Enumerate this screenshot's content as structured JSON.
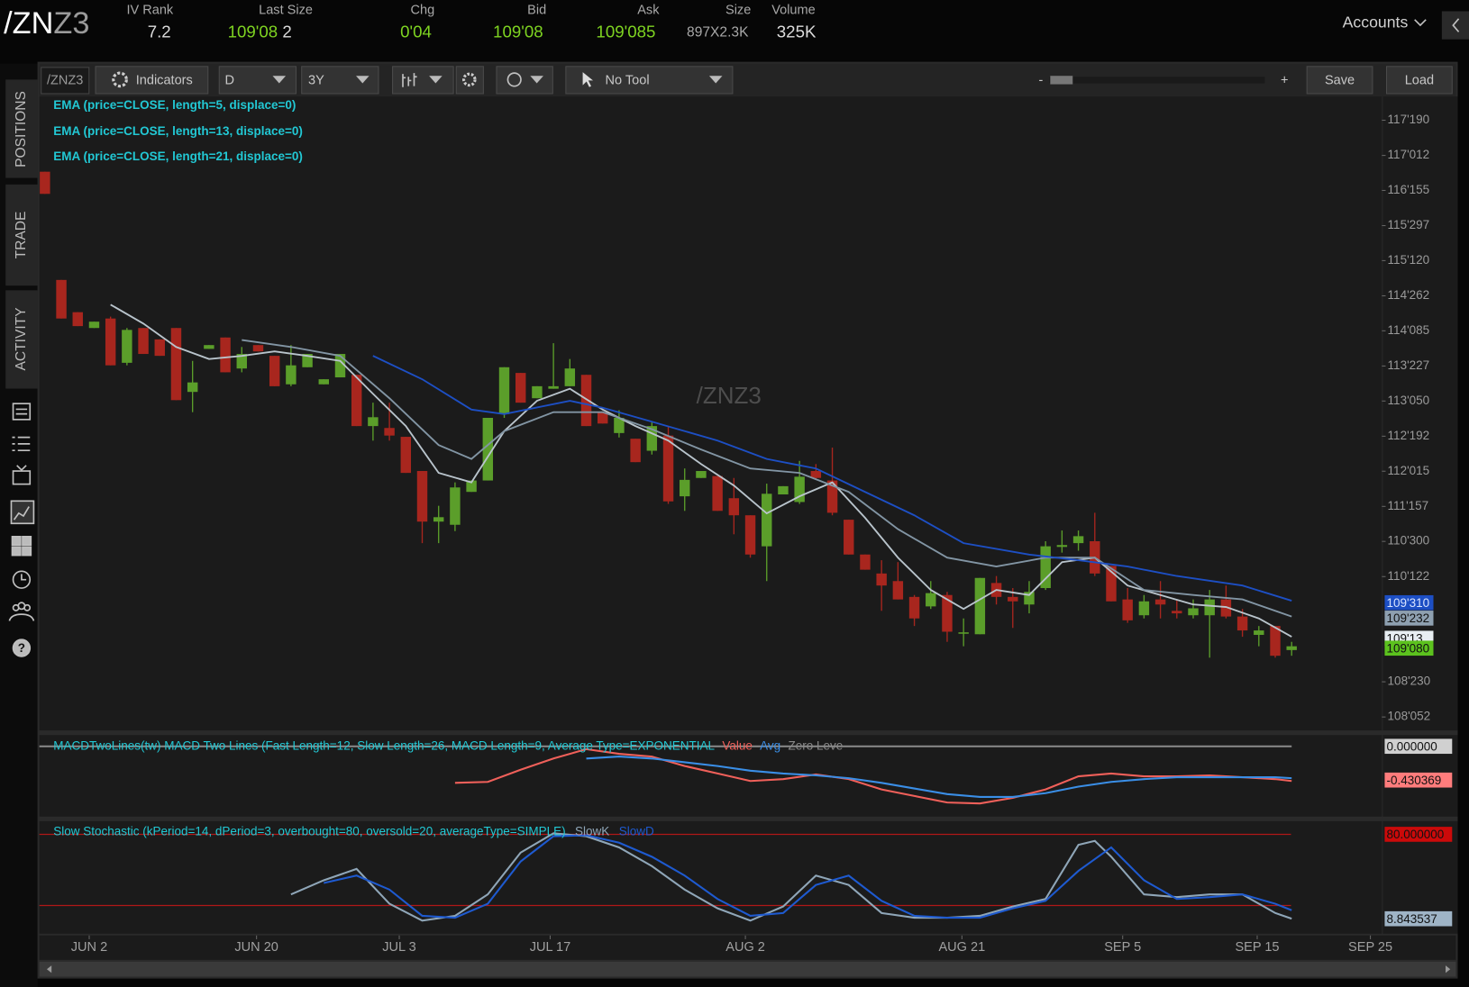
{
  "header": {
    "symbol_main": "/ZN",
    "symbol_suffix": "Z3",
    "fields": [
      {
        "label": "IV Rank",
        "value": "7.2"
      },
      {
        "label": "Last Size",
        "value": "109'08",
        "extra": "2"
      },
      {
        "label": "Chg",
        "value": "0'04"
      },
      {
        "label": "Bid",
        "value": "109'08"
      },
      {
        "label": "Ask",
        "value": "109'085"
      },
      {
        "label": "Size",
        "value": "897X2.3K"
      },
      {
        "label": "Volume",
        "value": "325K"
      }
    ],
    "accounts": "Accounts"
  },
  "side_tabs": [
    "POSITIONS",
    "TRADE",
    "ACTIVITY"
  ],
  "toolbar": {
    "symbol": "/ZNZ3",
    "indicators": "Indicators",
    "aggregation": "D",
    "period": "3Y",
    "tool": "No Tool",
    "zoom_minus": "-",
    "zoom_plus": "+",
    "save": "Save",
    "load": "Load"
  },
  "chart_data": [
    {
      "type": "candlestick",
      "watermark": "/ZNZ3",
      "up_color": "#5b9e2a",
      "down_color": "#a8261e",
      "ohlc": [
        [
          116.78,
          116.78,
          116.43,
          116.43
        ],
        [
          115.07,
          115.07,
          114.46,
          114.46
        ],
        [
          114.56,
          114.56,
          114.34,
          114.34
        ],
        [
          114.31,
          114.41,
          114.31,
          114.41
        ],
        [
          114.46,
          114.49,
          113.72,
          113.72
        ],
        [
          113.76,
          114.31,
          113.72,
          114.28
        ],
        [
          114.31,
          114.31,
          113.9,
          113.9
        ],
        [
          114.13,
          114.13,
          113.87,
          113.87
        ],
        [
          114.31,
          114.31,
          113.17,
          113.17
        ],
        [
          113.3,
          113.79,
          112.98,
          113.45
        ],
        [
          113.98,
          114.04,
          113.98,
          114.04
        ],
        [
          114.16,
          114.16,
          113.61,
          113.61
        ],
        [
          113.67,
          114.01,
          113.61,
          113.9
        ],
        [
          114.04,
          114.04,
          113.94,
          113.94
        ],
        [
          113.87,
          113.87,
          113.39,
          113.39
        ],
        [
          113.42,
          114.04,
          113.39,
          113.72
        ],
        [
          113.69,
          113.9,
          113.69,
          113.9
        ],
        [
          113.42,
          113.5,
          113.42,
          113.5
        ],
        [
          113.53,
          113.9,
          113.53,
          113.9
        ],
        [
          113.57,
          113.57,
          112.76,
          112.76
        ],
        [
          112.76,
          113.13,
          112.53,
          112.9
        ],
        [
          112.73,
          113.13,
          112.53,
          112.61
        ],
        [
          112.59,
          112.59,
          112.02,
          112.02
        ],
        [
          112.05,
          112.05,
          110.91,
          111.25
        ],
        [
          111.25,
          111.5,
          110.91,
          111.32
        ],
        [
          111.2,
          111.87,
          111.1,
          111.79
        ],
        [
          111.72,
          111.9,
          111.72,
          111.9
        ],
        [
          111.9,
          112.89,
          111.9,
          112.89
        ],
        [
          112.95,
          113.69,
          112.89,
          113.69
        ],
        [
          113.6,
          113.6,
          113.13,
          113.13
        ],
        [
          113.2,
          113.39,
          113.2,
          113.39
        ],
        [
          113.35,
          114.07,
          113.35,
          113.39
        ],
        [
          113.39,
          113.82,
          113.39,
          113.67
        ],
        [
          113.57,
          113.57,
          112.76,
          112.76
        ],
        [
          112.98,
          112.98,
          112.8,
          112.8
        ],
        [
          112.65,
          113.01,
          112.58,
          112.89
        ],
        [
          112.56,
          112.56,
          112.19,
          112.19
        ],
        [
          112.37,
          112.83,
          112.31,
          112.76
        ],
        [
          112.61,
          112.76,
          111.53,
          111.57
        ],
        [
          111.65,
          112.09,
          111.42,
          111.91
        ],
        [
          111.94,
          112.05,
          111.94,
          112.05
        ],
        [
          111.97,
          111.97,
          111.42,
          111.42
        ],
        [
          111.62,
          111.94,
          111.05,
          111.35
        ],
        [
          111.35,
          111.35,
          110.68,
          110.73
        ],
        [
          110.86,
          111.85,
          110.31,
          111.69
        ],
        [
          111.68,
          111.81,
          111.68,
          111.81
        ],
        [
          111.56,
          112.21,
          111.53,
          111.96
        ],
        [
          112.05,
          112.16,
          111.91,
          111.94
        ],
        [
          111.9,
          112.42,
          111.35,
          111.39
        ],
        [
          111.28,
          111.28,
          110.73,
          110.73
        ],
        [
          110.73,
          110.73,
          110.49,
          110.49
        ],
        [
          110.43,
          110.64,
          109.84,
          110.24
        ],
        [
          110.31,
          110.61,
          110.02,
          110.02
        ],
        [
          110.06,
          110.09,
          109.6,
          109.72
        ],
        [
          109.91,
          110.31,
          109.87,
          110.12
        ],
        [
          110.09,
          110.14,
          109.35,
          109.51
        ],
        [
          109.5,
          109.72,
          109.28,
          109.5
        ],
        [
          109.47,
          110.36,
          109.47,
          110.36
        ],
        [
          110.28,
          110.39,
          109.94,
          110.06
        ],
        [
          110.06,
          110.2,
          109.57,
          109.99
        ],
        [
          109.94,
          110.31,
          109.8,
          110.14
        ],
        [
          110.2,
          110.94,
          110.17,
          110.86
        ],
        [
          110.85,
          111.11,
          110.76,
          110.88
        ],
        [
          110.91,
          111.11,
          110.79,
          111.02
        ],
        [
          110.94,
          111.39,
          110.39,
          110.43
        ],
        [
          110.55,
          110.55,
          109.99,
          109.99
        ],
        [
          110.02,
          110.2,
          109.65,
          109.69
        ],
        [
          109.77,
          110.09,
          109.72,
          109.99
        ],
        [
          110.02,
          110.31,
          109.72,
          109.94
        ],
        [
          109.84,
          110.02,
          109.72,
          109.8
        ],
        [
          109.77,
          110.02,
          109.72,
          109.88
        ],
        [
          109.77,
          110.17,
          109.1,
          110.02
        ],
        [
          110.02,
          110.24,
          109.72,
          109.75
        ],
        [
          109.75,
          109.87,
          109.43,
          109.53
        ],
        [
          109.46,
          109.6,
          109.28,
          109.53
        ],
        [
          109.6,
          109.6,
          109.1,
          109.13
        ],
        [
          109.22,
          109.35,
          109.13,
          109.28
        ]
      ],
      "series": [
        {
          "name": "EMA (price=CLOSE, length=5, displace=0)",
          "color": "#b9c4cc",
          "x": [
            4,
            6,
            8,
            10,
            12,
            14,
            16,
            18,
            20,
            22,
            24,
            26,
            28,
            30,
            32,
            34,
            36,
            38,
            40,
            42,
            44,
            46,
            48,
            50,
            52,
            54,
            56,
            58,
            60,
            62,
            64,
            66,
            68,
            70,
            72,
            74,
            76
          ],
          "values": [
            114.68,
            114.38,
            114.01,
            113.82,
            113.87,
            113.94,
            113.87,
            113.79,
            113.27,
            112.76,
            112.02,
            111.87,
            112.68,
            113.16,
            113.35,
            113.02,
            112.76,
            112.53,
            112.16,
            111.82,
            111.38,
            111.65,
            111.87,
            111.31,
            110.68,
            110.17,
            109.87,
            110.17,
            110.09,
            110.61,
            110.68,
            110.24,
            110.09,
            109.94,
            109.9,
            109.72,
            109.43
          ]
        },
        {
          "name": "EMA (price=CLOSE, length=13, displace=0)",
          "color": "#8295a4",
          "x": [
            12,
            15,
            18,
            21,
            24,
            26,
            28,
            31,
            34,
            37,
            40,
            43,
            46,
            49,
            52,
            55,
            58,
            61,
            64,
            67,
            70,
            73,
            76
          ],
          "values": [
            114.12,
            114.01,
            113.87,
            113.2,
            112.46,
            112.24,
            112.68,
            112.98,
            112.98,
            112.71,
            112.39,
            112.09,
            112.02,
            111.72,
            111.13,
            110.68,
            110.54,
            110.68,
            110.68,
            110.17,
            110.09,
            110.02,
            109.75
          ]
        },
        {
          "name": "EMA (price=CLOSE, length=21, displace=0)",
          "color": "#1d4fc4",
          "x": [
            20,
            23,
            26,
            28,
            32,
            34,
            37,
            41,
            44,
            47,
            50,
            53,
            56,
            60,
            63,
            66,
            69,
            73,
            76
          ],
          "values": [
            113.87,
            113.5,
            113.02,
            112.95,
            113.16,
            113.05,
            112.83,
            112.53,
            112.24,
            112.09,
            111.72,
            111.35,
            110.91,
            110.73,
            110.64,
            110.54,
            110.39,
            110.24,
            110.0
          ]
        }
      ],
      "xlim": [
        -0.34,
        81.5
      ],
      "xticks": [
        {
          "value": 2.7,
          "label": "JUN 2"
        },
        {
          "value": 12.9,
          "label": "JUN 20"
        },
        {
          "value": 21.6,
          "label": "JUL 3"
        },
        {
          "value": 30.8,
          "label": "JUL 17"
        },
        {
          "value": 42.7,
          "label": "AUG 2"
        },
        {
          "value": 55.9,
          "label": "AUG 21"
        },
        {
          "value": 65.7,
          "label": "SEP 5"
        },
        {
          "value": 73.9,
          "label": "SEP 15"
        },
        {
          "value": 80.8,
          "label": "SEP 25"
        }
      ],
      "ylim": [
        107.95,
        117.94
      ],
      "yticks": [
        {
          "value": 117.59375,
          "label": "117'190"
        },
        {
          "value": 117.0375,
          "label": "117'012"
        },
        {
          "value": 116.484375,
          "label": "116'155"
        },
        {
          "value": 115.928125,
          "label": "115'297"
        },
        {
          "value": 115.375,
          "label": "115'120"
        },
        {
          "value": 114.81875,
          "label": "114'262"
        },
        {
          "value": 114.265625,
          "label": "114'085"
        },
        {
          "value": 113.709375,
          "label": "113'227"
        },
        {
          "value": 113.15625,
          "label": "113'050"
        },
        {
          "value": 112.6,
          "label": "112'192"
        },
        {
          "value": 112.046875,
          "label": "112'015"
        },
        {
          "value": 111.490625,
          "label": "111'157"
        },
        {
          "value": 110.9375,
          "label": "110'300"
        },
        {
          "value": 110.38125,
          "label": "110'122"
        },
        {
          "value": 108.71875,
          "label": "108'230"
        },
        {
          "value": 108.1625,
          "label": "108'052"
        }
      ],
      "price_labels": [
        {
          "value": 109.96875,
          "label": "109'310",
          "color": "#1d4fc4"
        },
        {
          "value": 109.725,
          "label": "109'232",
          "color": "#8ea0b0"
        },
        {
          "value": 109.40625,
          "label": "109'13",
          "color": "#e8eef2"
        },
        {
          "value": 109.25,
          "label": "109'080",
          "color": "#5cc21e"
        }
      ]
    },
    {
      "type": "line",
      "title": "MACDTwoLines(tw) MACD Two Lines (Fast Length=12, Slow Length=26, MACD Length=9, Average Type=EXPONENTIAL",
      "ylim": [
        -0.896,
        0.143
      ],
      "series": [
        {
          "name": "Value",
          "color": "#f0605a",
          "x": [
            25,
            27,
            29,
            31,
            33,
            35,
            37,
            39,
            41,
            43,
            45,
            47,
            49,
            51,
            53,
            55,
            57,
            59,
            61,
            63,
            65,
            67,
            69,
            71,
            73,
            75,
            76
          ],
          "values": [
            -0.466,
            -0.454,
            -0.299,
            -0.155,
            -0.036,
            -0.096,
            -0.131,
            -0.251,
            -0.347,
            -0.442,
            -0.418,
            -0.359,
            -0.418,
            -0.55,
            -0.633,
            -0.717,
            -0.729,
            -0.657,
            -0.55,
            -0.382,
            -0.347,
            -0.382,
            -0.382,
            -0.37,
            -0.394,
            -0.418,
            -0.442
          ]
        },
        {
          "name": "Avg",
          "color": "#3a8ee6",
          "x": [
            33,
            35,
            37,
            39,
            41,
            43,
            45,
            47,
            49,
            51,
            53,
            55,
            57,
            59,
            61,
            63,
            65,
            67,
            69,
            71,
            73,
            75,
            76
          ],
          "values": [
            -0.155,
            -0.131,
            -0.155,
            -0.203,
            -0.251,
            -0.311,
            -0.347,
            -0.37,
            -0.406,
            -0.466,
            -0.538,
            -0.609,
            -0.645,
            -0.645,
            -0.598,
            -0.514,
            -0.454,
            -0.418,
            -0.394,
            -0.394,
            -0.394,
            -0.394,
            -0.406
          ]
        },
        {
          "name": "Zero Leve",
          "color": "#8a8a8a",
          "x": [
            -0.34,
            76
          ],
          "values": [
            0,
            0
          ]
        }
      ],
      "yticks": [
        {
          "value": 0,
          "label": "0.000000",
          "color": "#d0d0d0"
        }
      ],
      "value_box": {
        "value": -0.430369,
        "label": "-0.430369",
        "color": "#ff7c7c"
      }
    },
    {
      "type": "line",
      "title": "Slow Stochastic (kPeriod=14, dPeriod=3, overbought=80, oversold=20, averageType=SIMPLE)",
      "ylim": [
        -3.7,
        91
      ],
      "overbought": 80,
      "oversold": 20,
      "level_color": "#b01818",
      "series": [
        {
          "name": "SlowK",
          "color": "#8fa6b8",
          "x": [
            15,
            17,
            19,
            21,
            23,
            25,
            27,
            29,
            31,
            33,
            35,
            37,
            39,
            41,
            43,
            45,
            47,
            49,
            51,
            53,
            55,
            57,
            59,
            61,
            63,
            64,
            65,
            67,
            69,
            71,
            73,
            75,
            76
          ],
          "values": [
            29.4,
            41.3,
            50.8,
            21.5,
            7.3,
            11.3,
            29.4,
            64.6,
            80.8,
            78.4,
            69.0,
            53.2,
            33.4,
            17.6,
            7.3,
            19.2,
            45.2,
            37.3,
            13.7,
            9.7,
            9.7,
            11.3,
            19.2,
            25.5,
            71.1,
            74.4,
            61.1,
            29.4,
            27.1,
            29.4,
            29.4,
            13.7,
            8.9
          ]
        },
        {
          "name": "SlowD",
          "color": "#1e5ad0",
          "x": [
            17,
            19,
            21,
            23,
            25,
            27,
            29,
            31,
            33,
            35,
            37,
            39,
            41,
            43,
            45,
            47,
            49,
            51,
            53,
            55,
            57,
            59,
            61,
            63,
            65,
            67,
            69,
            71,
            73,
            75,
            76
          ],
          "values": [
            39.0,
            45.2,
            33.4,
            11.3,
            9.7,
            21.5,
            57.1,
            78.4,
            79.2,
            72.9,
            61.1,
            45.2,
            25.5,
            11.3,
            13.7,
            37.3,
            45.2,
            23.9,
            11.3,
            9.7,
            9.7,
            17.6,
            23.9,
            49.2,
            69.0,
            41.3,
            25.5,
            27.1,
            29.4,
            21.5,
            16.0
          ]
        }
      ],
      "yticks": [
        {
          "value": 80,
          "label": "80.000000",
          "color": "#cc0a0a"
        }
      ],
      "value_box": {
        "value": 8.843537,
        "label": "8.843537",
        "color": "#9fb4c6"
      }
    }
  ]
}
